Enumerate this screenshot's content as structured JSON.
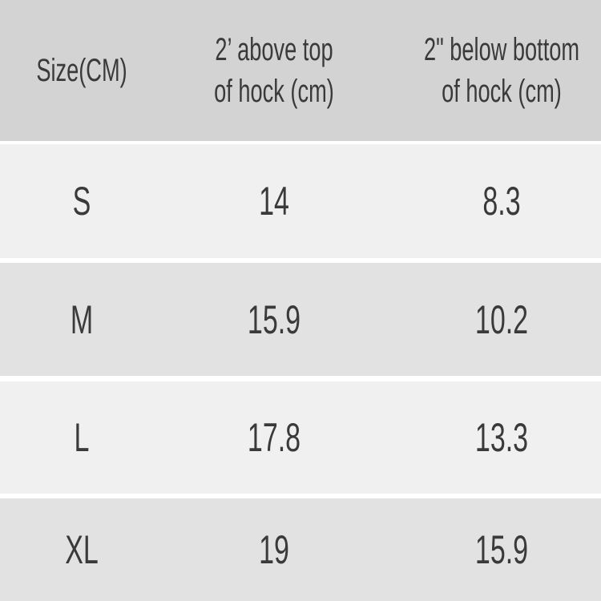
{
  "table": {
    "headers": [
      "Size(CM)",
      "2' above top\nof hock (cm)",
      "2\" below bottom\nof hock (cm)"
    ],
    "header_lines": [
      [
        "Size(CM)"
      ],
      [
        "2’ above top",
        "of hock (cm)"
      ],
      [
        "2\" below bottom",
        "of hock (cm)"
      ]
    ],
    "rows": [
      [
        "S",
        "14",
        "8.3"
      ],
      [
        "M",
        "15.9",
        "10.2"
      ],
      [
        "L",
        "17.8",
        "13.3"
      ],
      [
        "XL",
        "19",
        "15.9"
      ]
    ]
  },
  "colors": {
    "header_bg": "#d3d3d3",
    "row_light": "#f0f0f0",
    "row_dark": "#e2e2e2",
    "separator": "#ffffff",
    "text": "#3a3a3a"
  }
}
